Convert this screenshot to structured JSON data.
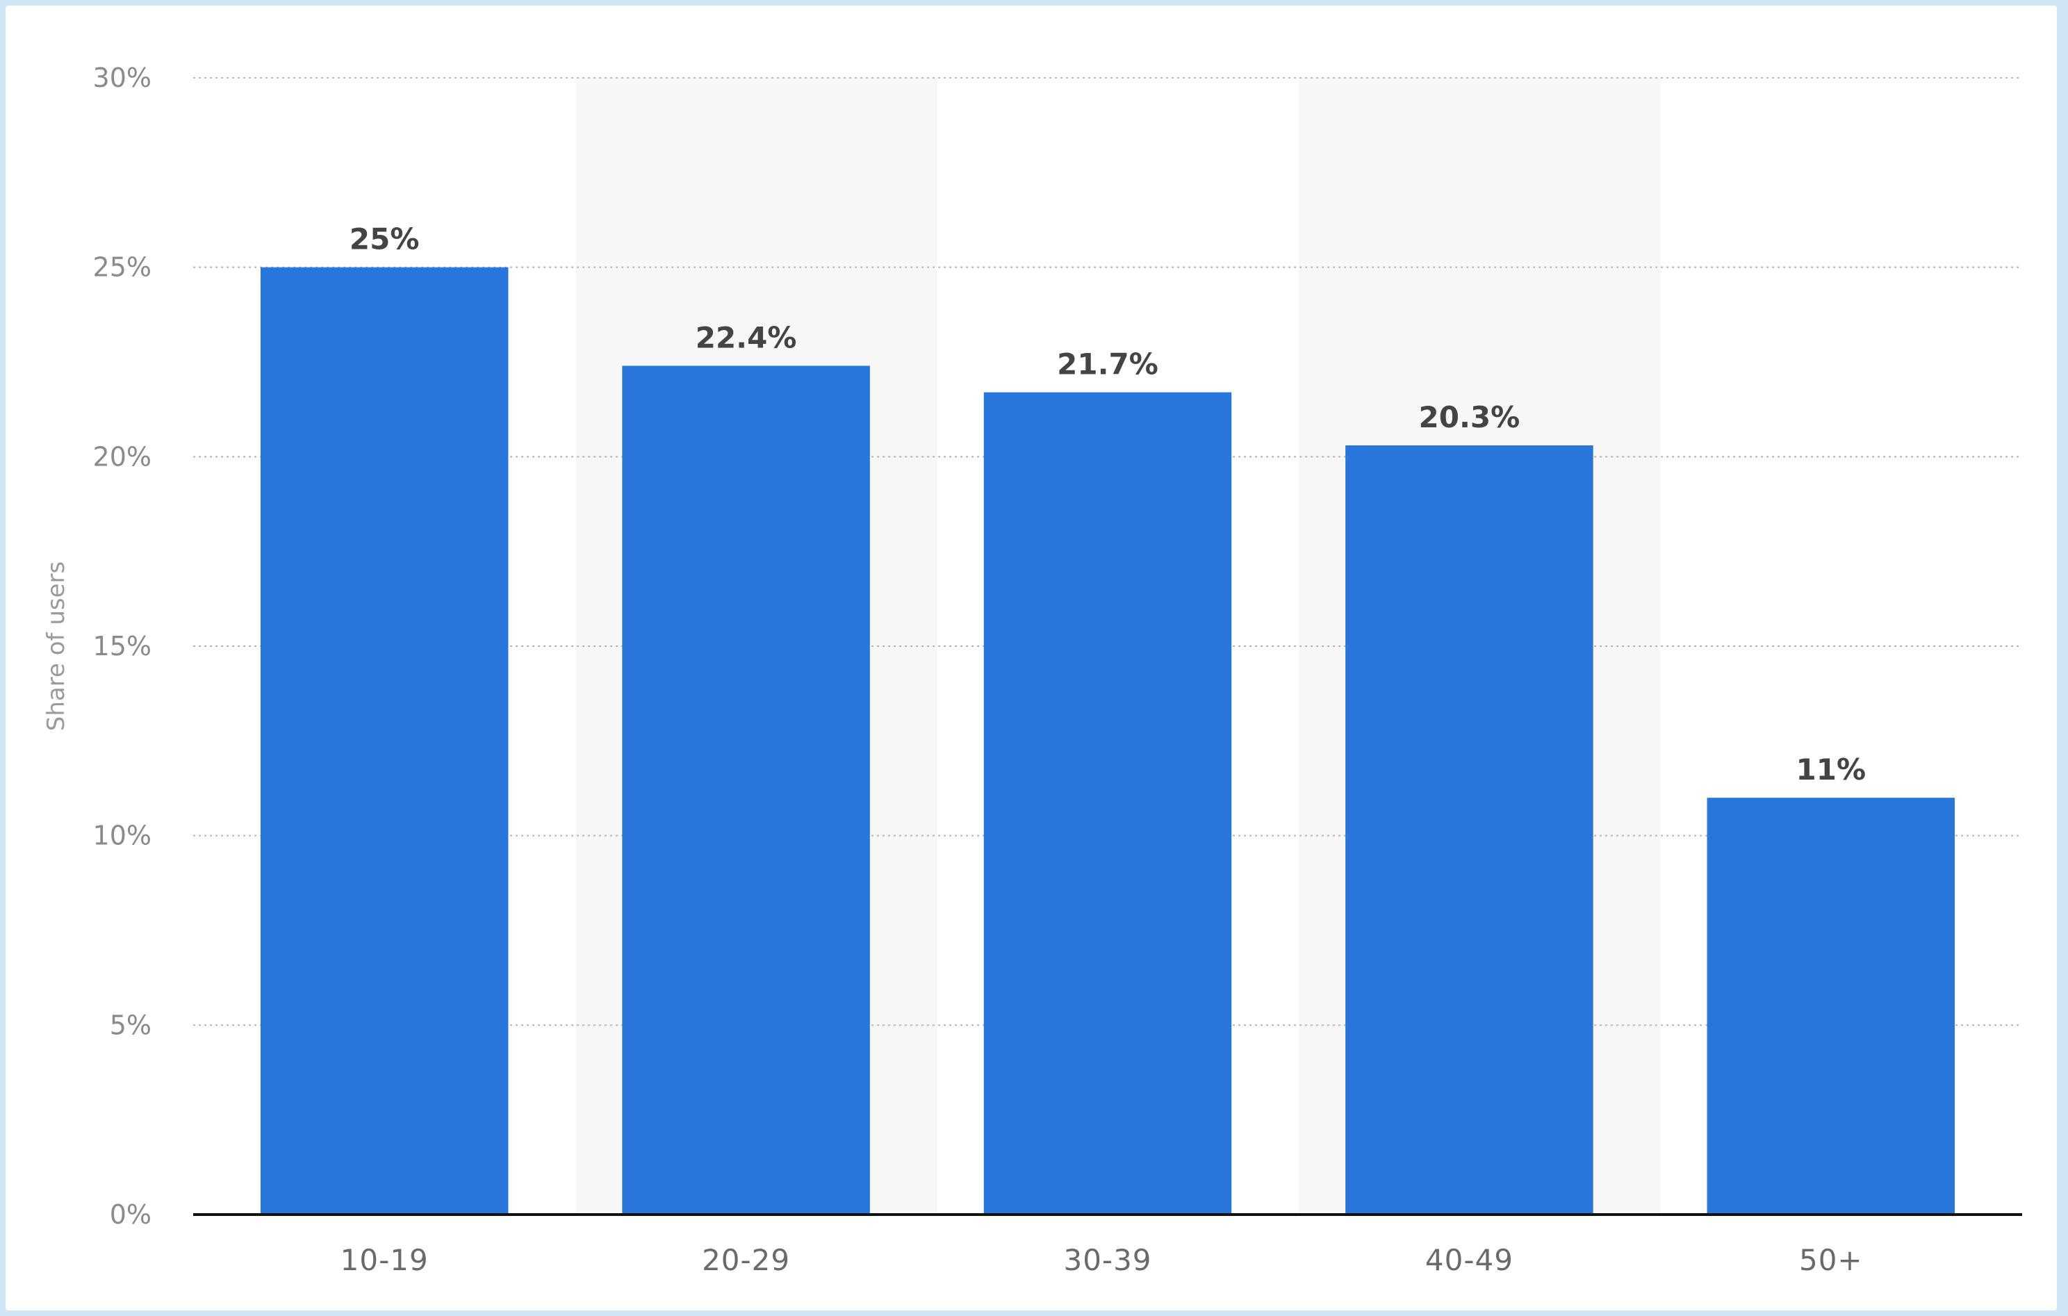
{
  "chart_data": {
    "type": "bar",
    "categories": [
      "10-19",
      "20-29",
      "30-39",
      "40-49",
      "50+"
    ],
    "values": [
      25,
      22.4,
      21.7,
      20.3,
      11
    ],
    "value_labels": [
      "25%",
      "22.4%",
      "21.7%",
      "20.3%",
      "11%"
    ],
    "title": "",
    "xlabel": "",
    "ylabel": "Share of users",
    "ylim": [
      0,
      30
    ],
    "yticks": [
      0,
      5,
      10,
      15,
      20,
      25,
      30
    ],
    "ytick_labels": [
      "0%",
      "5%",
      "10%",
      "15%",
      "20%",
      "25%",
      "30%"
    ],
    "grid": true,
    "legend": "none",
    "colors": {
      "bar": "#2876dc",
      "alt_band": "#f7f7f7",
      "frame": "#cfe6f7"
    }
  }
}
